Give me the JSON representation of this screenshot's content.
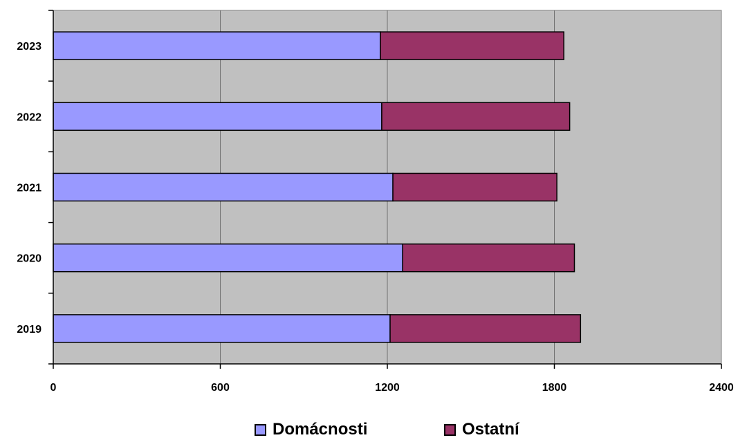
{
  "chart_data": {
    "type": "bar",
    "orientation": "horizontal",
    "stacked": true,
    "categories": [
      "2019",
      "2020",
      "2021",
      "2022",
      "2023"
    ],
    "series": [
      {
        "name": "Domácnosti",
        "color": "#9999ff",
        "values": [
          1210,
          1255,
          1220,
          1180,
          1175
        ]
      },
      {
        "name": "Ostatní",
        "color": "#993366",
        "values": [
          684,
          617,
          589,
          675,
          659
        ]
      }
    ],
    "xlim": [
      0,
      2400
    ],
    "xticks": [
      "0",
      "600",
      "1200",
      "1800",
      "2400"
    ],
    "grid": "vertical",
    "legend": "bottom",
    "plot_background": "#c0c0c0"
  }
}
